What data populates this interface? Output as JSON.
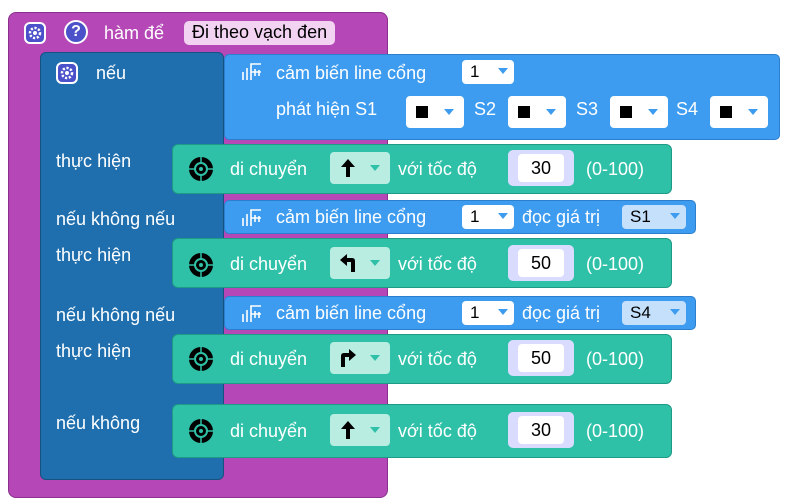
{
  "func": {
    "label": "hàm để",
    "name": "Đi theo vạch đen",
    "help": "?"
  },
  "if_block": {
    "if_label": "nếu",
    "do_label": "thực hiện",
    "elseif_label": "nếu không nếu",
    "else_label": "nếu không"
  },
  "sensor1": {
    "label": "cảm biến line cổng",
    "port": "1",
    "detect_label": "phát hiện S1",
    "s2": "S2",
    "s3": "S3",
    "s4": "S4"
  },
  "sensor2": {
    "label": "cảm biến line cổng",
    "port": "1",
    "read_label": "đọc giá trị",
    "channel": "S1"
  },
  "sensor3": {
    "label": "cảm biến line cổng",
    "port": "1",
    "read_label": "đọc giá trị",
    "channel": "S4"
  },
  "moves": [
    {
      "label": "di chuyển",
      "dir_icon": "arrow-up-icon",
      "speed_label": "với tốc độ",
      "speed": "30",
      "range": "(0-100)"
    },
    {
      "label": "di chuyển",
      "dir_icon": "turn-left-icon",
      "speed_label": "với tốc độ",
      "speed": "50",
      "range": "(0-100)"
    },
    {
      "label": "di chuyển",
      "dir_icon": "turn-right-icon",
      "speed_label": "với tốc độ",
      "speed": "50",
      "range": "(0-100)"
    },
    {
      "label": "di chuyển",
      "dir_icon": "arrow-up-icon",
      "speed_label": "với tốc độ",
      "speed": "30",
      "range": "(0-100)"
    }
  ],
  "colors": {
    "function": "#b548b6",
    "control": "#1f6fae",
    "sensor": "#3d9cf0",
    "motor": "#2fc1a8",
    "gear": "#4b52c9"
  }
}
